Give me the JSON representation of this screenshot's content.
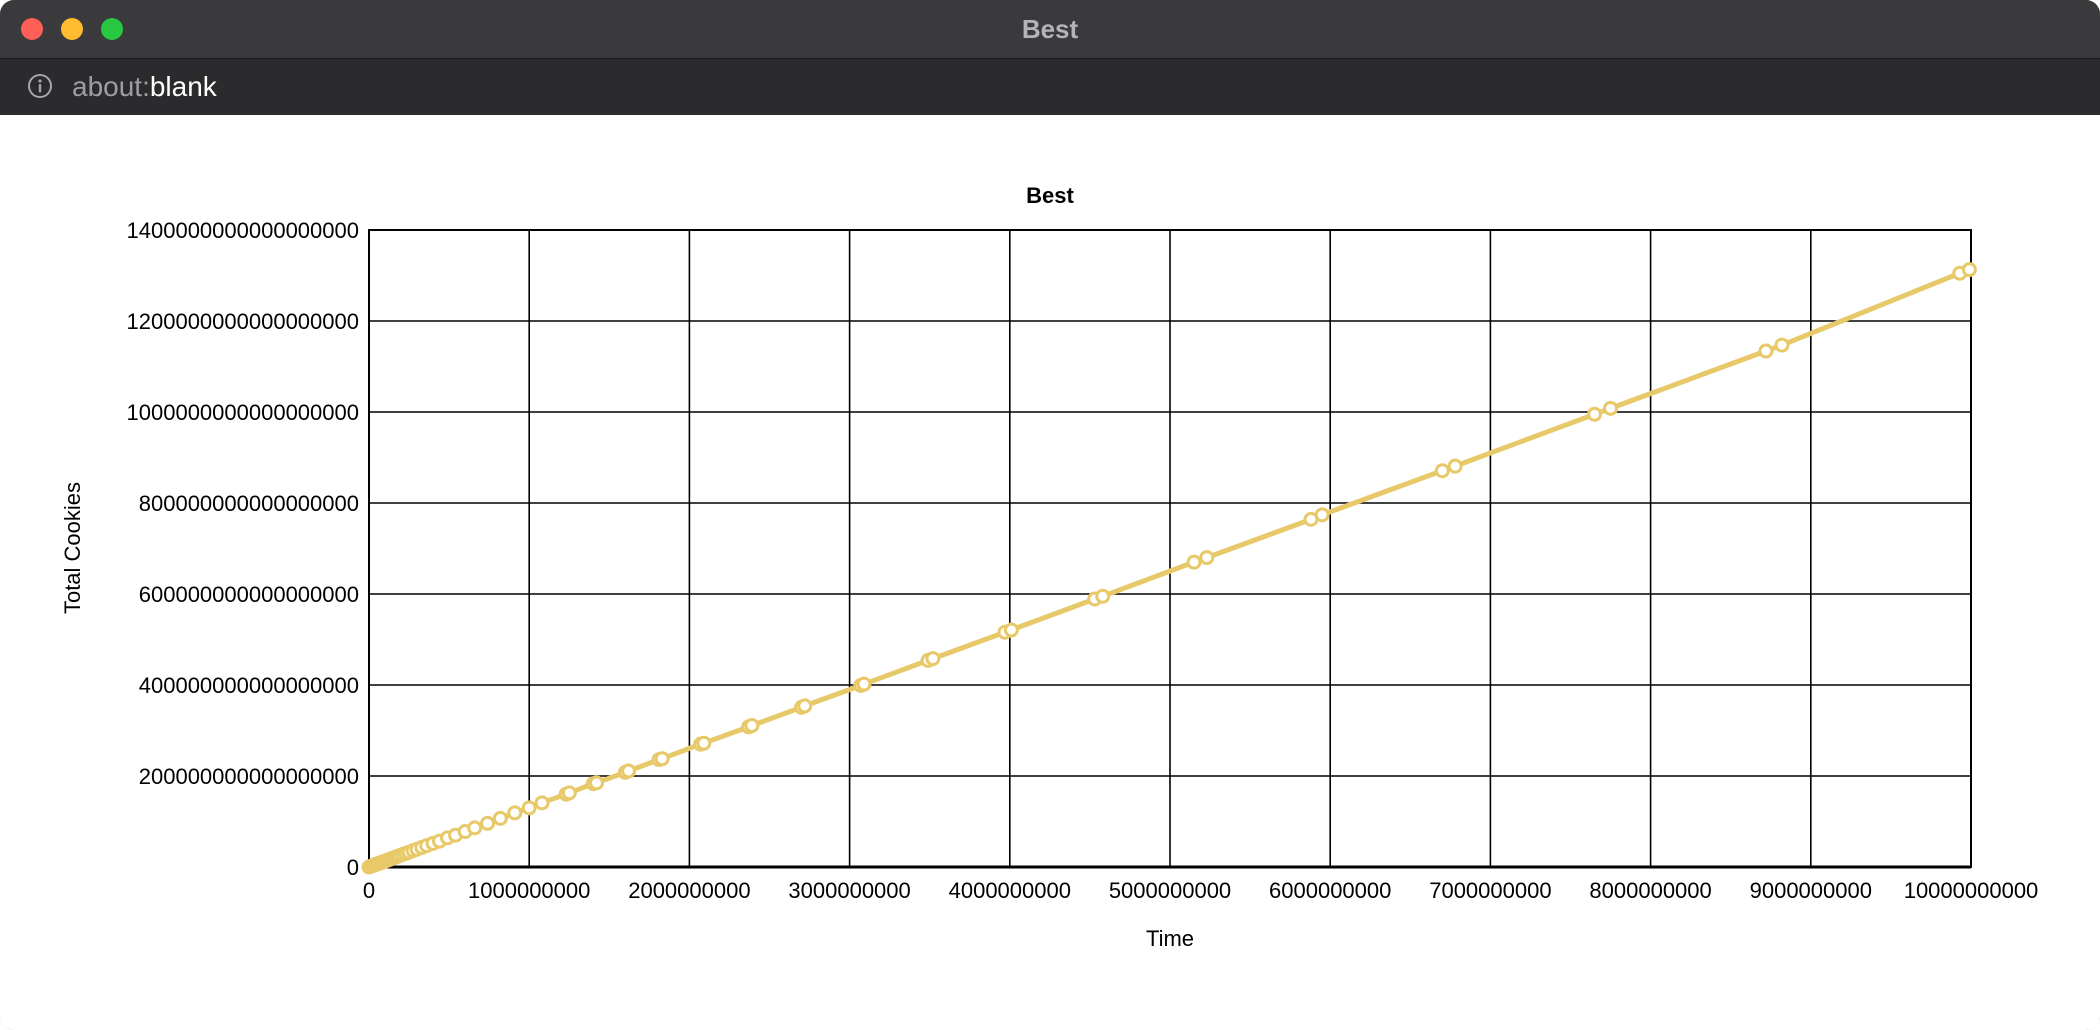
{
  "window": {
    "title": "Best",
    "url_scheme": "about:",
    "url_rest": "blank",
    "icons": {
      "close": "close-traffic-light",
      "minimize": "minimize-traffic-light",
      "maximize": "maximize-traffic-light",
      "info": "info-icon"
    }
  },
  "chart_data": {
    "type": "line",
    "title": "Best",
    "xlabel": "Time",
    "ylabel": "Total Cookies",
    "xlim": [
      0,
      10000000000
    ],
    "ylim": [
      0,
      1400000000000000000
    ],
    "x_ticks": [
      0,
      1000000000,
      2000000000,
      3000000000,
      4000000000,
      5000000000,
      6000000000,
      7000000000,
      8000000000,
      9000000000,
      10000000000
    ],
    "y_ticks": [
      0,
      200000000000000000,
      400000000000000000,
      600000000000000000,
      800000000000000000,
      1000000000000000000,
      1200000000000000000,
      1400000000000000000
    ],
    "x_tick_labels": [
      "0",
      "1000000000",
      "2000000000",
      "3000000000",
      "4000000000",
      "5000000000",
      "6000000000",
      "7000000000",
      "8000000000",
      "9000000000",
      "10000000000"
    ],
    "y_tick_labels": [
      "0",
      "200000000000000000",
      "400000000000000000",
      "600000000000000000",
      "800000000000000000",
      "1000000000000000000",
      "1200000000000000000",
      "1400000000000000000"
    ],
    "grid": true,
    "legend": "none",
    "series_color": "#e8c96a",
    "series": [
      {
        "x": [
          0,
          10000000,
          20000000,
          30000000,
          40000000,
          50000000,
          60000000,
          70000000,
          80000000,
          90000000,
          100000000,
          115000000,
          130000000,
          145000000,
          160000000,
          175000000,
          190000000,
          210000000,
          230000000,
          250000000,
          275000000,
          300000000,
          330000000,
          360000000,
          400000000,
          440000000,
          490000000,
          540000000,
          600000000,
          660000000,
          740000000,
          820000000,
          910000000,
          1000000000,
          1080000000,
          1230000000,
          1250000000,
          1400000000,
          1420000000,
          1600000000,
          1620000000,
          1810000000,
          1830000000,
          2070000000,
          2090000000,
          2370000000,
          2390000000,
          2700000000,
          2720000000,
          3070000000,
          3090000000,
          3490000000,
          3520000000,
          3970000000,
          4010000000,
          4530000000,
          4580000000,
          5150000000,
          5230000000,
          5880000000,
          5950000000,
          6700000000,
          6780000000,
          7650000000,
          7750000000,
          8720000000,
          8820000000,
          9930000000,
          9990000000
        ],
        "y": [
          0,
          1300000000000000,
          2600000000000000,
          3900000000000000,
          5200000000000000,
          6500000000000000,
          7800000000000000,
          9100000000000000,
          10400000000000000,
          11700000000000000,
          13000000000000000,
          15000000000000000,
          17000000000000000,
          19000000000000000,
          21000000000000000,
          23000000000000000,
          25000000000000000,
          27500000000000000,
          30000000000000000,
          32500000000000000,
          36000000000000000,
          39000000000000000,
          43000000000000000,
          47000000000000000,
          52000000000000000,
          57000000000000000,
          64000000000000000,
          70000000000000000,
          78000000000000000,
          86000000000000000,
          96000000000000000,
          107000000000000000,
          119000000000000000,
          130000000000000000,
          141000000000000000,
          160000000000000000,
          163000000000000000,
          183000000000000000,
          185000000000000000,
          208000000000000000,
          211000000000000000,
          236000000000000000,
          238000000000000000,
          270000000000000000,
          272000000000000000,
          308000000000000000,
          311000000000000000,
          351000000000000000,
          354000000000000000,
          399000000000000000,
          402000000000000000,
          454000000000000000,
          458000000000000000,
          516000000000000000,
          521000000000000000,
          589000000000000000,
          595000000000000000,
          670000000000000000,
          680000000000000000,
          764000000000000000,
          774000000000000000,
          871000000000000000,
          881000000000000000,
          995000000000000000,
          1008000000000000000,
          1134000000000000000,
          1147000000000000000,
          1305000000000000000,
          1313000000000000000
        ]
      }
    ]
  }
}
